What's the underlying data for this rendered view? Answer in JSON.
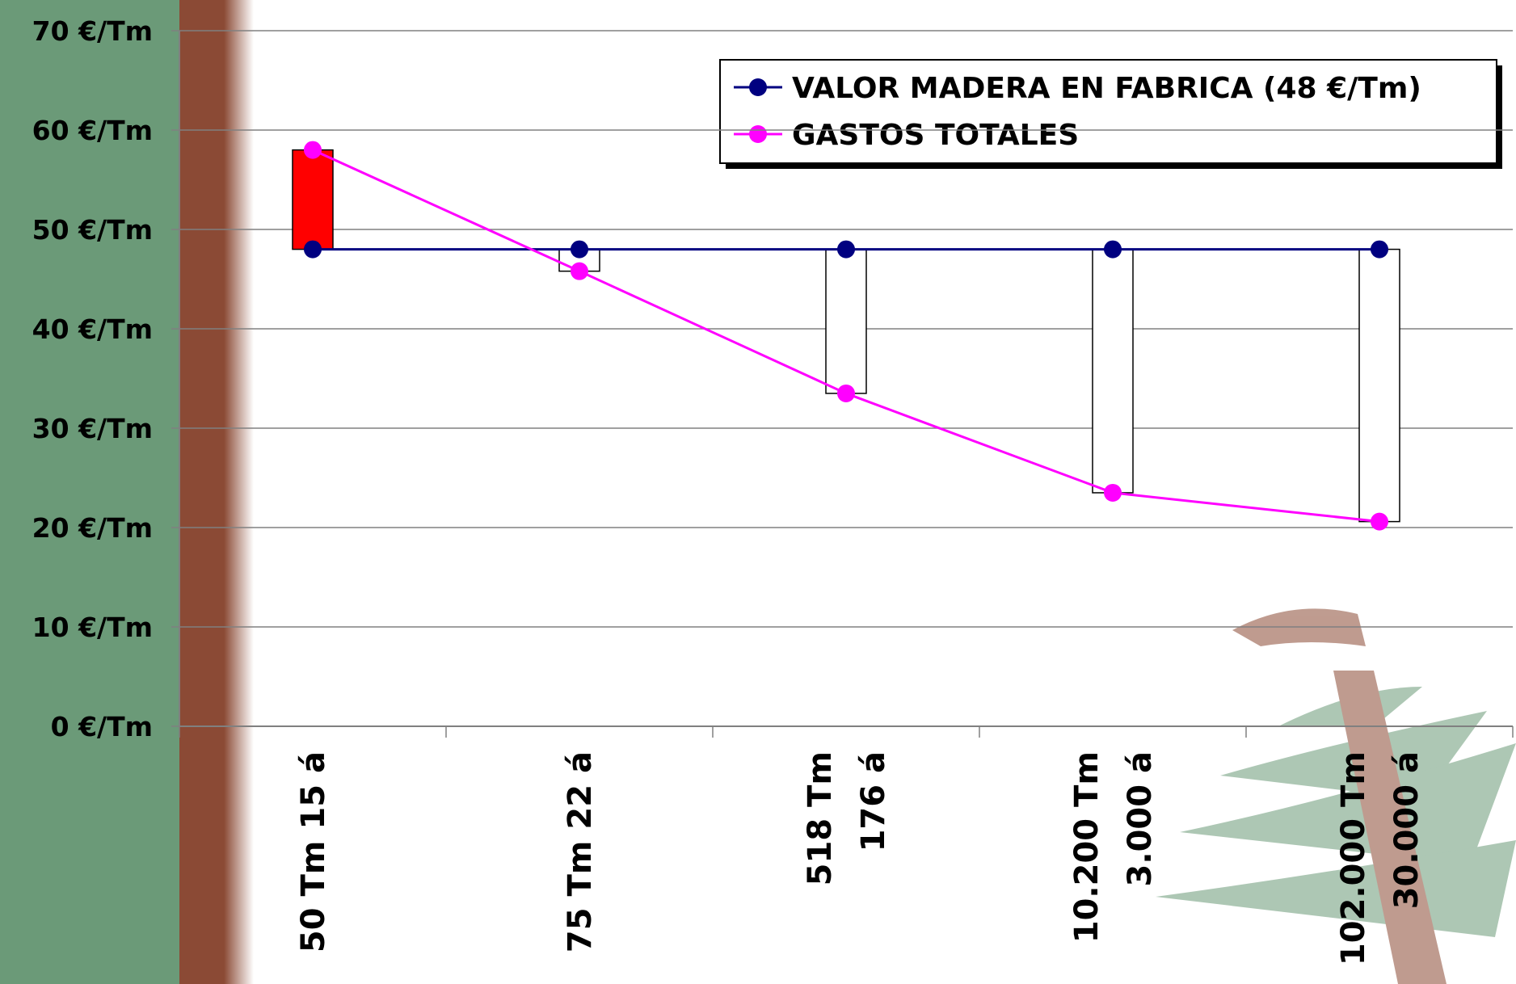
{
  "chart_data": {
    "type": "line",
    "categories": [
      [
        "50 Tm 15 á"
      ],
      [
        "75 Tm 22 á"
      ],
      [
        "518 Tm",
        "176 á"
      ],
      [
        "10.200 Tm",
        "3.000 á"
      ],
      [
        "102.000 Tm",
        "30.000 á"
      ]
    ],
    "series": [
      {
        "name": "VALOR MADERA EN FABRICA (48 €/Tm)",
        "color": "#000080",
        "values": [
          48,
          48,
          48,
          48,
          48
        ]
      },
      {
        "name": "GASTOS TOTALES",
        "color": "#ff00ff",
        "values": [
          58,
          45.8,
          33.5,
          23.5,
          20.6
        ]
      }
    ],
    "up_down_bars": true,
    "up_color": "#ff0000",
    "down_color": "#ffffff",
    "ylim": [
      0,
      70
    ],
    "yticks": [
      {
        "value": 0,
        "label": "0 €/Tm"
      },
      {
        "value": 10,
        "label": "10 €/Tm"
      },
      {
        "value": 20,
        "label": "20 €/Tm"
      },
      {
        "value": 30,
        "label": "30 €/Tm"
      },
      {
        "value": 40,
        "label": "40 €/Tm"
      },
      {
        "value": 50,
        "label": "50 €/Tm"
      },
      {
        "value": 60,
        "label": "60 €/Tm"
      },
      {
        "value": 70,
        "label": "70 €/Tm"
      }
    ],
    "grid": true,
    "legend": "top-right"
  }
}
